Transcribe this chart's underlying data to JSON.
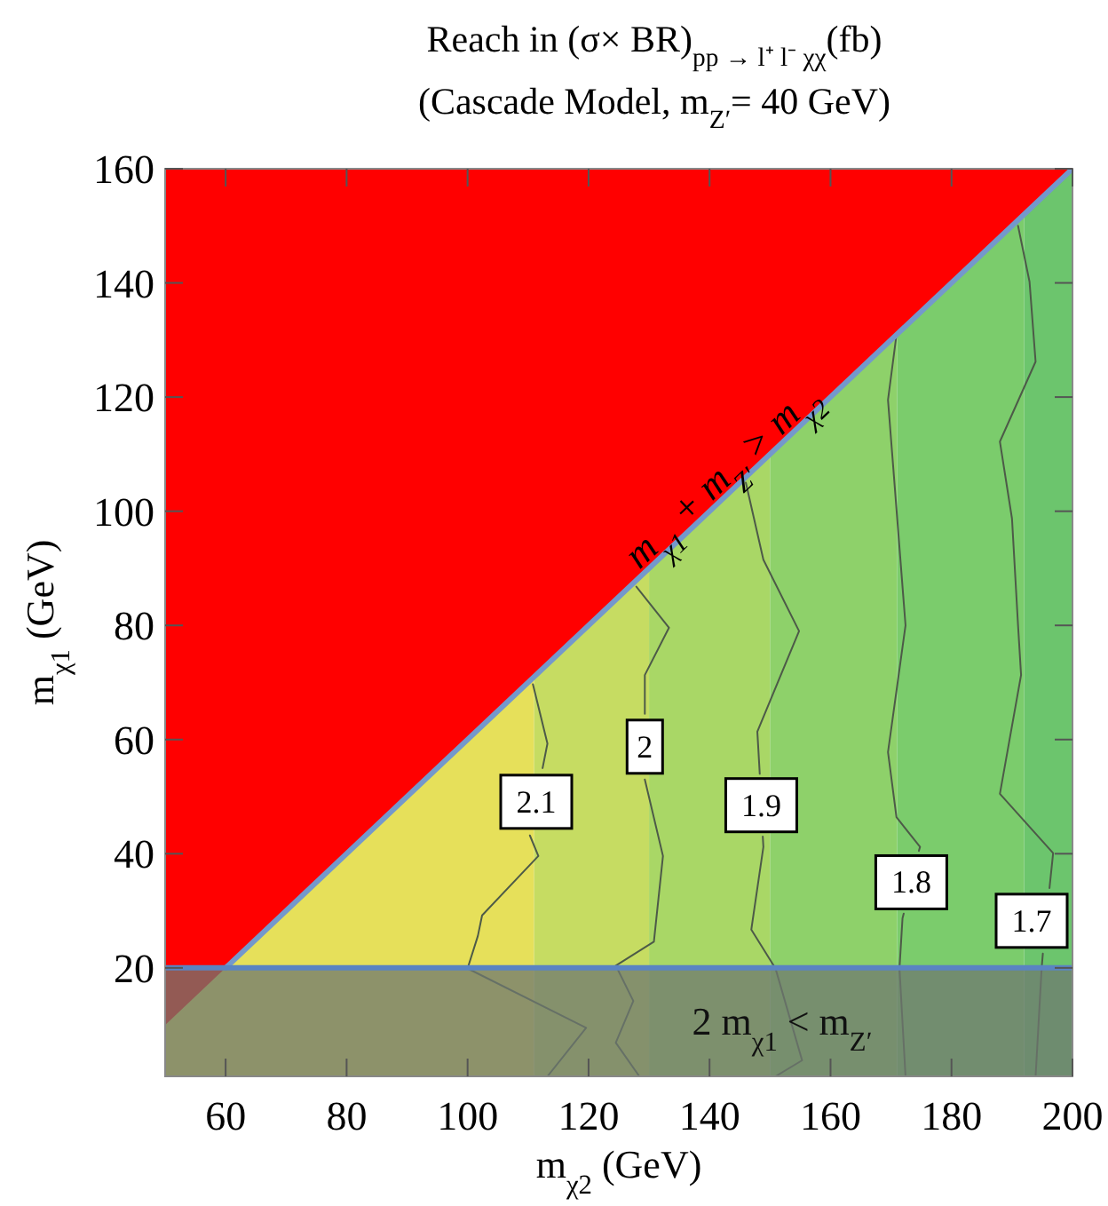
{
  "chart_data": {
    "type": "line",
    "title": "Reach in (σ× BR)$_{pp → l⁺ l⁻ χχ}$(fb)",
    "subtitle": "(Cascade Model, m$_{Z′}$= 40 GeV)",
    "xlabel": "m$_{χ2}$ (GeV)",
    "ylabel": "m$_{χ1}$ (GeV)",
    "xlim": [
      50,
      200
    ],
    "ylim": [
      1,
      160
    ],
    "xticks": [
      60,
      80,
      100,
      120,
      140,
      160,
      180,
      200
    ],
    "yticks": [
      20,
      40,
      60,
      80,
      100,
      120,
      140,
      160
    ],
    "bands": [
      {
        "axis": "x",
        "from": 50,
        "to": 111,
        "color": "#e6e05a"
      },
      {
        "axis": "x",
        "from": 111,
        "to": 130,
        "color": "#c6dc62"
      },
      {
        "axis": "x",
        "from": 130,
        "to": 150,
        "color": "#a9d766"
      },
      {
        "axis": "x",
        "from": 150,
        "to": 171,
        "color": "#8ed16a"
      },
      {
        "axis": "x",
        "from": 171,
        "to": 192,
        "color": "#7bcc6c"
      },
      {
        "axis": "x",
        "from": 192,
        "to": 200,
        "color": "#6cc56d"
      },
      {
        "axis": "y",
        "from": 1,
        "to": 20,
        "label": "2 m$_{χ1}$ < m$_{Z′}$",
        "color": "#6f7870"
      }
    ],
    "ref_lines": [
      {
        "axis": "y",
        "value": 20,
        "color": "#5a84c2"
      }
    ],
    "series": [
      {
        "type": "area",
        "x": [
          50,
          200
        ],
        "values": [
          10,
          160
        ],
        "color": "#ff0000"
      },
      {
        "name": "2.1",
        "color": "#4d5a48",
        "x": [
          110.8,
          113.2,
          112.4,
          null,
          110.3,
          111.7,
          102.4,
          101.7,
          100,
          119.6,
          113.2
        ],
        "values": [
          69.7,
          59.3,
          55,
          null,
          43.2,
          39.6,
          29.2,
          25.6,
          19.9,
          9.5,
          1
        ]
      },
      {
        "name": "2",
        "color": "#4d5a48",
        "x": [
          127.9,
          133.3,
          129.3,
          129.3,
          null,
          129.3,
          132.3,
          130.8,
          124.5,
          127.4,
          124.5,
          128.4
        ],
        "values": [
          86.8,
          79.6,
          71.3,
          64.5,
          null,
          53,
          39.6,
          24.6,
          20.4,
          14.2,
          6.9,
          1
        ]
      },
      {
        "name": "1.9",
        "color": "#4d5a48",
        "x": [
          146,
          148.9,
          154.8,
          147.9,
          148.3,
          null,
          148.8,
          148.9,
          146.9,
          150.9,
          155.3,
          150.9
        ],
        "values": [
          105,
          91.5,
          79,
          61.4,
          54,
          null,
          43,
          41.2,
          26.7,
          19.9,
          3.8,
          1
        ]
      },
      {
        "name": "1.8",
        "color": "#4d5a48",
        "x": [
          170.9,
          169.5,
          172.4,
          169.5,
          170.9,
          174.8,
          174.6,
          null,
          172.1,
          171.9,
          171.4,
          172.4
        ],
        "values": [
          130.9,
          119.5,
          80,
          57.8,
          46.4,
          41.2,
          40.5,
          null,
          29.5,
          28.7,
          19.9,
          1
        ]
      },
      {
        "name": "1.7",
        "color": "#4d5a48",
        "x": [
          191,
          192.9,
          193.9,
          188,
          190,
          191,
          191.5,
          188,
          196.8,
          196.2,
          null,
          195.1,
          194.9,
          193.9
        ],
        "values": [
          150,
          140.2,
          126.2,
          112.2,
          98.7,
          80,
          71.3,
          50.5,
          40.1,
          34,
          null,
          22.5,
          19.9,
          1
        ]
      },
      {
        "name": "m$_{χ1}$ + m$_{Z′}$ > m$_{χ2}$",
        "color": "#7498cc",
        "x": [
          60,
          200
        ],
        "values": [
          20,
          160
        ]
      }
    ]
  }
}
